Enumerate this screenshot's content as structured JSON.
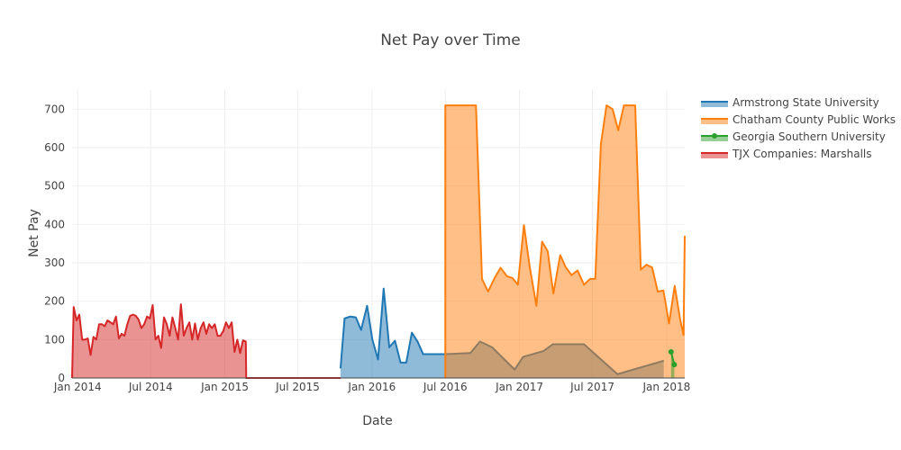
{
  "chart_data": {
    "type": "area",
    "title": "Net Pay over Time",
    "xlabel": "Date",
    "ylabel": "Net Pay",
    "xlim": [
      "2013-12-18",
      "2018-02-15"
    ],
    "ylim": [
      0,
      750
    ],
    "x_ticks": [
      {
        "date": "2014-01-01",
        "label": "Jan 2014"
      },
      {
        "date": "2014-07-01",
        "label": "Jul 2014"
      },
      {
        "date": "2015-01-01",
        "label": "Jan 2015"
      },
      {
        "date": "2015-07-01",
        "label": "Jul 2015"
      },
      {
        "date": "2016-01-01",
        "label": "Jan 2016"
      },
      {
        "date": "2016-07-01",
        "label": "Jul 2016"
      },
      {
        "date": "2017-01-01",
        "label": "Jan 2017"
      },
      {
        "date": "2017-07-01",
        "label": "Jul 2017"
      },
      {
        "date": "2018-01-01",
        "label": "Jan 2018"
      }
    ],
    "y_ticks": [
      0,
      100,
      200,
      300,
      400,
      500,
      600,
      700
    ],
    "grid": true,
    "legend_position": "top-right",
    "series": [
      {
        "name": "Armstrong State University",
        "color": "#1f77b4",
        "fill": "tozeroy",
        "points": [
          [
            "2015-10-15",
            25
          ],
          [
            "2015-10-25",
            155
          ],
          [
            "2015-11-08",
            160
          ],
          [
            "2015-11-22",
            158
          ],
          [
            "2015-12-05",
            125
          ],
          [
            "2015-12-20",
            188
          ],
          [
            "2016-01-02",
            100
          ],
          [
            "2016-01-16",
            48
          ],
          [
            "2016-01-30",
            233
          ],
          [
            "2016-02-13",
            80
          ],
          [
            "2016-02-27",
            97
          ],
          [
            "2016-03-12",
            40
          ],
          [
            "2016-03-26",
            40
          ],
          [
            "2016-04-09",
            118
          ],
          [
            "2016-04-23",
            95
          ],
          [
            "2016-05-07",
            62
          ],
          [
            "2016-07-01",
            62
          ],
          [
            "2016-09-01",
            65
          ],
          [
            "2016-09-25",
            95
          ],
          [
            "2016-10-25",
            80
          ],
          [
            "2016-12-20",
            22
          ],
          [
            "2017-01-10",
            55
          ],
          [
            "2017-03-01",
            70
          ],
          [
            "2017-03-25",
            88
          ],
          [
            "2017-06-10",
            88
          ],
          [
            "2017-09-01",
            10
          ],
          [
            "2017-12-25",
            45
          ]
        ]
      },
      {
        "name": "Chatham County Public Works",
        "color": "#ff7f0e",
        "fill": "tozeroy",
        "points": [
          [
            "2016-07-01",
            0
          ],
          [
            "2016-07-01",
            710
          ],
          [
            "2016-09-15",
            710
          ],
          [
            "2016-09-30",
            258
          ],
          [
            "2016-10-15",
            225
          ],
          [
            "2016-11-01",
            262
          ],
          [
            "2016-11-15",
            287
          ],
          [
            "2016-12-01",
            265
          ],
          [
            "2016-12-15",
            260
          ],
          [
            "2016-12-28",
            243
          ],
          [
            "2017-01-12",
            398
          ],
          [
            "2017-01-26",
            292
          ],
          [
            "2017-02-12",
            188
          ],
          [
            "2017-02-26",
            355
          ],
          [
            "2017-03-12",
            330
          ],
          [
            "2017-03-26",
            220
          ],
          [
            "2017-04-12",
            320
          ],
          [
            "2017-04-26",
            288
          ],
          [
            "2017-05-10",
            268
          ],
          [
            "2017-05-25",
            280
          ],
          [
            "2017-06-10",
            243
          ],
          [
            "2017-06-25",
            258
          ],
          [
            "2017-07-08",
            258
          ],
          [
            "2017-07-22",
            610
          ],
          [
            "2017-08-05",
            710
          ],
          [
            "2017-08-20",
            700
          ],
          [
            "2017-09-03",
            645
          ],
          [
            "2017-09-17",
            710
          ],
          [
            "2017-10-01",
            710
          ],
          [
            "2017-10-15",
            710
          ],
          [
            "2017-10-29",
            282
          ],
          [
            "2017-11-12",
            295
          ],
          [
            "2017-11-26",
            288
          ],
          [
            "2017-12-10",
            225
          ],
          [
            "2017-12-24",
            228
          ],
          [
            "2018-01-07",
            142
          ],
          [
            "2018-01-21",
            240
          ],
          [
            "2018-02-04",
            150
          ],
          [
            "2018-02-12",
            112
          ],
          [
            "2018-02-15",
            370
          ]
        ]
      },
      {
        "name": "Georgia Southern University",
        "color": "#2ca02c",
        "fill": "tozeroy",
        "markers": true,
        "points": [
          [
            "2018-01-12",
            68
          ],
          [
            "2018-01-20",
            35
          ]
        ]
      },
      {
        "name": "TJX Companies: Marshalls",
        "color": "#d62728",
        "fill": "tozeroy",
        "points": [
          [
            "2013-12-18",
            0
          ],
          [
            "2013-12-22",
            185
          ],
          [
            "2013-12-29",
            150
          ],
          [
            "2014-01-05",
            165
          ],
          [
            "2014-01-12",
            100
          ],
          [
            "2014-01-19",
            100
          ],
          [
            "2014-01-26",
            103
          ],
          [
            "2014-02-02",
            60
          ],
          [
            "2014-02-09",
            107
          ],
          [
            "2014-02-16",
            100
          ],
          [
            "2014-02-23",
            140
          ],
          [
            "2014-03-02",
            140
          ],
          [
            "2014-03-09",
            135
          ],
          [
            "2014-03-16",
            150
          ],
          [
            "2014-03-23",
            145
          ],
          [
            "2014-03-30",
            140
          ],
          [
            "2014-04-06",
            160
          ],
          [
            "2014-04-13",
            103
          ],
          [
            "2014-04-20",
            115
          ],
          [
            "2014-04-27",
            110
          ],
          [
            "2014-05-04",
            140
          ],
          [
            "2014-05-11",
            162
          ],
          [
            "2014-05-18",
            165
          ],
          [
            "2014-05-25",
            162
          ],
          [
            "2014-06-01",
            152
          ],
          [
            "2014-06-08",
            130
          ],
          [
            "2014-06-15",
            140
          ],
          [
            "2014-06-22",
            160
          ],
          [
            "2014-06-29",
            155
          ],
          [
            "2014-07-06",
            190
          ],
          [
            "2014-07-13",
            100
          ],
          [
            "2014-07-20",
            110
          ],
          [
            "2014-07-27",
            78
          ],
          [
            "2014-08-03",
            158
          ],
          [
            "2014-08-10",
            140
          ],
          [
            "2014-08-17",
            110
          ],
          [
            "2014-08-24",
            158
          ],
          [
            "2014-08-31",
            130
          ],
          [
            "2014-09-07",
            100
          ],
          [
            "2014-09-14",
            192
          ],
          [
            "2014-09-21",
            110
          ],
          [
            "2014-09-28",
            130
          ],
          [
            "2014-10-05",
            145
          ],
          [
            "2014-10-12",
            100
          ],
          [
            "2014-10-19",
            142
          ],
          [
            "2014-10-26",
            100
          ],
          [
            "2014-11-02",
            130
          ],
          [
            "2014-11-09",
            145
          ],
          [
            "2014-11-16",
            115
          ],
          [
            "2014-11-23",
            140
          ],
          [
            "2014-11-30",
            130
          ],
          [
            "2014-12-07",
            140
          ],
          [
            "2014-12-14",
            110
          ],
          [
            "2014-12-21",
            110
          ],
          [
            "2014-12-28",
            122
          ],
          [
            "2015-01-04",
            145
          ],
          [
            "2015-01-11",
            130
          ],
          [
            "2015-01-18",
            145
          ],
          [
            "2015-01-25",
            68
          ],
          [
            "2015-02-01",
            100
          ],
          [
            "2015-02-08",
            65
          ],
          [
            "2015-02-15",
            98
          ],
          [
            "2015-02-22",
            95
          ],
          [
            "2015-02-23",
            0
          ],
          [
            "2015-10-15",
            0
          ]
        ]
      }
    ]
  }
}
